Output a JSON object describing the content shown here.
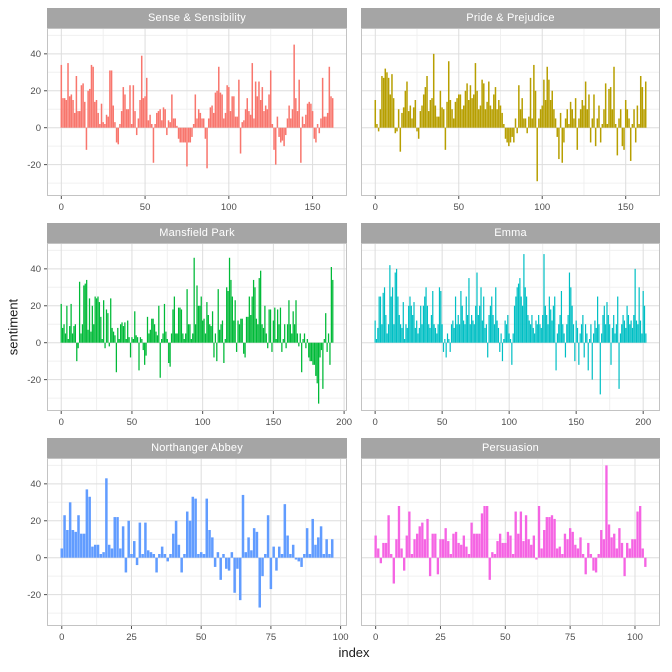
{
  "figure": {
    "xlabel": "index",
    "ylabel": "sentiment",
    "background": "#FFFFFF",
    "strip_fill": "#A5A5A5",
    "strip_text_color": "#FFFFFF",
    "panel_fill": "#FFFFFF",
    "panel_border": "#C3C3C3",
    "grid_major": "#DDDDDD",
    "grid_minor": "#F0F0F0",
    "tick_mark_color": "#4D4D4D",
    "tick_label_color": "#4D4D4D",
    "axis_title_color": "#1A1A1A"
  },
  "chart_data": {
    "type": "bar",
    "title": "",
    "xlabel": "index",
    "ylabel": "sentiment",
    "facet_by": "book",
    "ncol": 2,
    "grid": true,
    "legend": "none",
    "ylim": [
      -37,
      54
    ],
    "y_major_ticks": [
      -20,
      0,
      20,
      40
    ],
    "y_minor_ticks": [
      -30,
      -10,
      10,
      30,
      50
    ],
    "facets": [
      {
        "title": "Sense & Sensibility",
        "color": "#F8766D",
        "x_ticks": [
          0,
          50,
          100,
          150
        ],
        "values": [
          34,
          16,
          16,
          15,
          35,
          17,
          18,
          15,
          8,
          28,
          9,
          9,
          23,
          24,
          14,
          -12,
          20,
          21,
          34,
          33,
          14,
          15,
          8,
          2,
          13,
          3,
          2,
          7,
          6,
          31,
          31,
          12,
          3,
          -8,
          -9,
          2,
          9,
          22,
          18,
          10,
          10,
          23,
          2,
          23,
          9,
          -4,
          5,
          15,
          39,
          16,
          17,
          27,
          4,
          7,
          2,
          -19,
          2,
          8,
          9,
          10,
          4,
          11,
          10,
          -4,
          4,
          3,
          18,
          5,
          5,
          1,
          -6,
          -8,
          -8,
          -8,
          -8,
          -21,
          -8,
          -8,
          -5,
          2,
          18,
          5,
          10,
          8,
          5,
          5,
          -6,
          -22,
          5,
          11,
          12,
          8,
          19,
          20,
          33,
          19,
          18,
          5,
          8,
          23,
          22,
          9,
          17,
          17,
          6,
          6,
          26,
          -14,
          3,
          4,
          10,
          16,
          9,
          7,
          35,
          5,
          25,
          17,
          25,
          15,
          22,
          9,
          12,
          10,
          18,
          31,
          2,
          -12,
          -20,
          6,
          -5,
          -8,
          -7,
          -10,
          -4,
          5,
          12,
          5,
          10,
          45,
          16,
          9,
          26,
          -19,
          6,
          2,
          7,
          13,
          14,
          13,
          9,
          -6,
          -8,
          2,
          -3,
          5,
          27,
          6,
          6,
          8,
          33,
          17,
          16
        ]
      },
      {
        "title": "Pride & Prejudice",
        "color": "#B79F00",
        "x_ticks": [
          0,
          50,
          100,
          150
        ],
        "values": [
          15,
          2,
          -2,
          10,
          28,
          27,
          32,
          30,
          27,
          18,
          29,
          16,
          -3,
          -2,
          10,
          -13,
          8,
          11,
          20,
          25,
          9,
          12,
          5,
          11,
          15,
          -2,
          -6,
          9,
          12,
          18,
          22,
          28,
          9,
          15,
          16,
          40,
          12,
          6,
          6,
          20,
          11,
          10,
          -12,
          14,
          36,
          15,
          10,
          5,
          14,
          16,
          18,
          18,
          10,
          12,
          20,
          24,
          15,
          23,
          16,
          18,
          35,
          20,
          10,
          12,
          26,
          24,
          10,
          14,
          25,
          12,
          10,
          18,
          22,
          10,
          15,
          12,
          8,
          2,
          -6,
          -8,
          -10,
          -8,
          -5,
          -8,
          5,
          -3,
          23,
          10,
          16,
          5,
          5,
          -3,
          6,
          27,
          5,
          34,
          20,
          -29,
          5,
          10,
          12,
          26,
          15,
          33,
          26,
          15,
          20,
          10,
          5,
          -5,
          -17,
          8,
          -19,
          -8,
          5,
          10,
          2,
          14,
          10,
          5,
          16,
          -12,
          5,
          10,
          15,
          12,
          25,
          10,
          18,
          -8,
          5,
          18,
          -10,
          5,
          12,
          -8,
          2,
          10,
          24,
          2,
          21,
          22,
          10,
          33,
          2,
          -15,
          5,
          10,
          -10,
          -12,
          15,
          10,
          5,
          -18,
          2,
          10,
          -8,
          12,
          2,
          28,
          22,
          10,
          25
        ]
      },
      {
        "title": "Mansfield Park",
        "color": "#00BA38",
        "x_ticks": [
          0,
          50,
          100,
          150,
          200
        ],
        "values": [
          21,
          8,
          10,
          5,
          20,
          2,
          9,
          21,
          5,
          9,
          10,
          -10,
          -3,
          33,
          5,
          10,
          31,
          32,
          34,
          7,
          24,
          6,
          20,
          10,
          25,
          24,
          25,
          22,
          14,
          2,
          23,
          -3,
          18,
          16,
          -2,
          24,
          8,
          6,
          4,
          -16,
          8,
          2,
          10,
          11,
          9,
          11,
          2,
          12,
          3,
          -8,
          3,
          2,
          17,
          4,
          3,
          -15,
          3,
          2,
          -4,
          -12,
          -7,
          14,
          5,
          7,
          13,
          13,
          10,
          6,
          4,
          20,
          -19,
          2,
          5,
          21,
          6,
          2,
          -11,
          -13,
          5,
          18,
          25,
          5,
          5,
          19,
          19,
          18,
          5,
          2,
          5,
          29,
          10,
          10,
          2,
          5,
          46,
          10,
          31,
          20,
          20,
          25,
          12,
          13,
          5,
          22,
          15,
          10,
          9,
          17,
          -8,
          5,
          -10,
          29,
          7,
          10,
          12,
          -11,
          2,
          30,
          28,
          46,
          34,
          25,
          12,
          23,
          -5,
          12,
          10,
          13,
          13,
          -6,
          -8,
          14,
          14,
          25,
          15,
          25,
          34,
          30,
          13,
          10,
          35,
          39,
          10,
          8,
          20,
          5,
          -3,
          18,
          18,
          -5,
          12,
          19,
          2,
          18,
          10,
          19,
          -5,
          2,
          10,
          -3,
          10,
          23,
          10,
          5,
          17,
          10,
          23,
          5,
          -2,
          5,
          -16,
          2,
          5,
          -3,
          2,
          -8,
          -10,
          -10,
          -12,
          -12,
          -18,
          -22,
          -33,
          -8,
          -4,
          -25,
          2,
          16,
          -5,
          5,
          -12,
          41,
          34
        ]
      },
      {
        "title": "Emma",
        "color": "#00BFC4",
        "x_ticks": [
          0,
          50,
          100,
          150,
          200
        ],
        "values": [
          12,
          2,
          8,
          25,
          25,
          10,
          27,
          30,
          15,
          5,
          10,
          42,
          25,
          30,
          10,
          38,
          40,
          25,
          15,
          10,
          8,
          22,
          2,
          10,
          8,
          20,
          25,
          20,
          15,
          22,
          8,
          12,
          5,
          8,
          20,
          10,
          20,
          25,
          30,
          20,
          10,
          8,
          15,
          28,
          10,
          8,
          5,
          10,
          30,
          28,
          10,
          -5,
          2,
          -8,
          5,
          2,
          -5,
          10,
          12,
          8,
          25,
          10,
          15,
          10,
          28,
          20,
          12,
          10,
          25,
          15,
          35,
          10,
          15,
          12,
          10,
          20,
          38,
          15,
          20,
          30,
          12,
          25,
          8,
          10,
          -8,
          15,
          20,
          25,
          15,
          10,
          30,
          12,
          8,
          -5,
          5,
          -10,
          2,
          12,
          10,
          15,
          5,
          2,
          -12,
          5,
          20,
          25,
          30,
          32,
          35,
          25,
          20,
          48,
          30,
          25,
          15,
          12,
          10,
          15,
          8,
          5,
          12,
          10,
          15,
          10,
          8,
          15,
          48,
          20,
          15,
          10,
          25,
          18,
          12,
          20,
          25,
          -15,
          5,
          10,
          15,
          28,
          10,
          5,
          -8,
          10,
          15,
          38,
          30,
          20,
          10,
          -10,
          12,
          8,
          -12,
          5,
          10,
          15,
          -8,
          10,
          5,
          -15,
          2,
          10,
          -20,
          5,
          12,
          8,
          25,
          10,
          -28,
          5,
          15,
          20,
          10,
          22,
          15,
          10,
          -12,
          8,
          15,
          5,
          10,
          25,
          -25,
          5,
          10,
          15,
          12,
          8,
          20,
          15,
          10,
          12,
          8,
          15,
          40,
          12,
          10,
          30,
          12,
          5,
          28,
          20,
          5
        ]
      },
      {
        "title": "Northanger Abbey",
        "color": "#619CFF",
        "x_ticks": [
          0,
          25,
          50,
          75,
          100
        ],
        "values": [
          5,
          23,
          15,
          30,
          15,
          14,
          23,
          13,
          13,
          37,
          33,
          6,
          7,
          7,
          2,
          3,
          43,
          7,
          5,
          22,
          22,
          5,
          17,
          -8,
          20,
          2,
          9,
          -4,
          19,
          2,
          19,
          4,
          3,
          2,
          -8,
          2,
          6,
          2,
          -2,
          2,
          13,
          20,
          7,
          -8,
          2,
          25,
          20,
          33,
          32,
          2,
          3,
          2,
          32,
          15,
          11,
          -5,
          3,
          -12,
          2,
          -6,
          -7,
          3,
          -19,
          -6,
          -23,
          34,
          3,
          11,
          4,
          16,
          14,
          -27,
          -10,
          2,
          23,
          -17,
          6,
          -7,
          6,
          2,
          29,
          12,
          2,
          7,
          -1,
          -2,
          -5,
          2,
          16,
          2,
          21,
          7,
          11,
          17,
          2,
          10,
          2,
          10
        ]
      },
      {
        "title": "Persuasion",
        "color": "#F564E3",
        "x_ticks": [
          0,
          25,
          50,
          75,
          100
        ],
        "values": [
          12,
          5,
          -3,
          8,
          8,
          23,
          2,
          -14,
          10,
          28,
          5,
          -7,
          12,
          25,
          2,
          10,
          13,
          17,
          19,
          10,
          21,
          -10,
          13,
          13,
          -9,
          10,
          10,
          16,
          9,
          2,
          13,
          14,
          8,
          7,
          12,
          6,
          2,
          19,
          13,
          13,
          13,
          24,
          28,
          28,
          -12,
          3,
          2,
          9,
          13,
          8,
          8,
          14,
          12,
          2,
          25,
          13,
          25,
          9,
          23,
          10,
          7,
          12,
          -1,
          28,
          5,
          15,
          22,
          22,
          23,
          21,
          5,
          6,
          2,
          13,
          10,
          16,
          14,
          7,
          5,
          11,
          2,
          -9,
          8,
          2,
          -7,
          -8,
          2,
          15,
          10,
          50,
          18,
          11,
          13,
          5,
          16,
          8,
          -10,
          8,
          5,
          10,
          10,
          25,
          28,
          5,
          -5
        ]
      }
    ]
  }
}
